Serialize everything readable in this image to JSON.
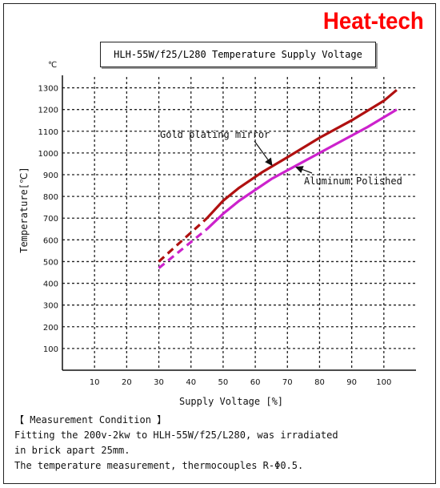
{
  "brand": "Heat-tech",
  "chart_data": {
    "type": "line",
    "title": "HLH-55W/f25/L280 Temperature Supply Voltage",
    "xlabel": "Supply Voltage [%]",
    "ylabel": "Temperature[℃]",
    "yunit": "℃",
    "xlim": [
      0,
      110
    ],
    "ylim": [
      0,
      1350
    ],
    "xticks": [
      10,
      20,
      30,
      40,
      50,
      60,
      70,
      80,
      90,
      100
    ],
    "yticks": [
      100,
      200,
      300,
      400,
      500,
      600,
      700,
      800,
      900,
      1000,
      1100,
      1200,
      1300
    ],
    "grid": true,
    "series": [
      {
        "name": "Gold plating mirror",
        "color": "#b01010",
        "dashed_until": 45,
        "x": [
          30,
          45,
          50,
          55,
          62,
          70,
          80,
          90,
          100,
          104
        ],
        "y": [
          500,
          700,
          780,
          840,
          910,
          980,
          1070,
          1150,
          1240,
          1290
        ]
      },
      {
        "name": "Aluminum Polished",
        "color": "#cc22cc",
        "dashed_until": 45,
        "x": [
          30,
          45,
          50,
          55,
          65,
          75,
          85,
          95,
          104
        ],
        "y": [
          470,
          650,
          720,
          780,
          880,
          960,
          1040,
          1120,
          1200
        ]
      }
    ]
  },
  "notes": {
    "heading": "【  Measurement Condition  】",
    "line1": "Fitting the 200v-2kw to HLH-55W/f25/L280, was irradiated",
    "line2": "in brick apart 25mm.",
    "line3": "The temperature measurement, thermocouples R-Φ0.5."
  }
}
